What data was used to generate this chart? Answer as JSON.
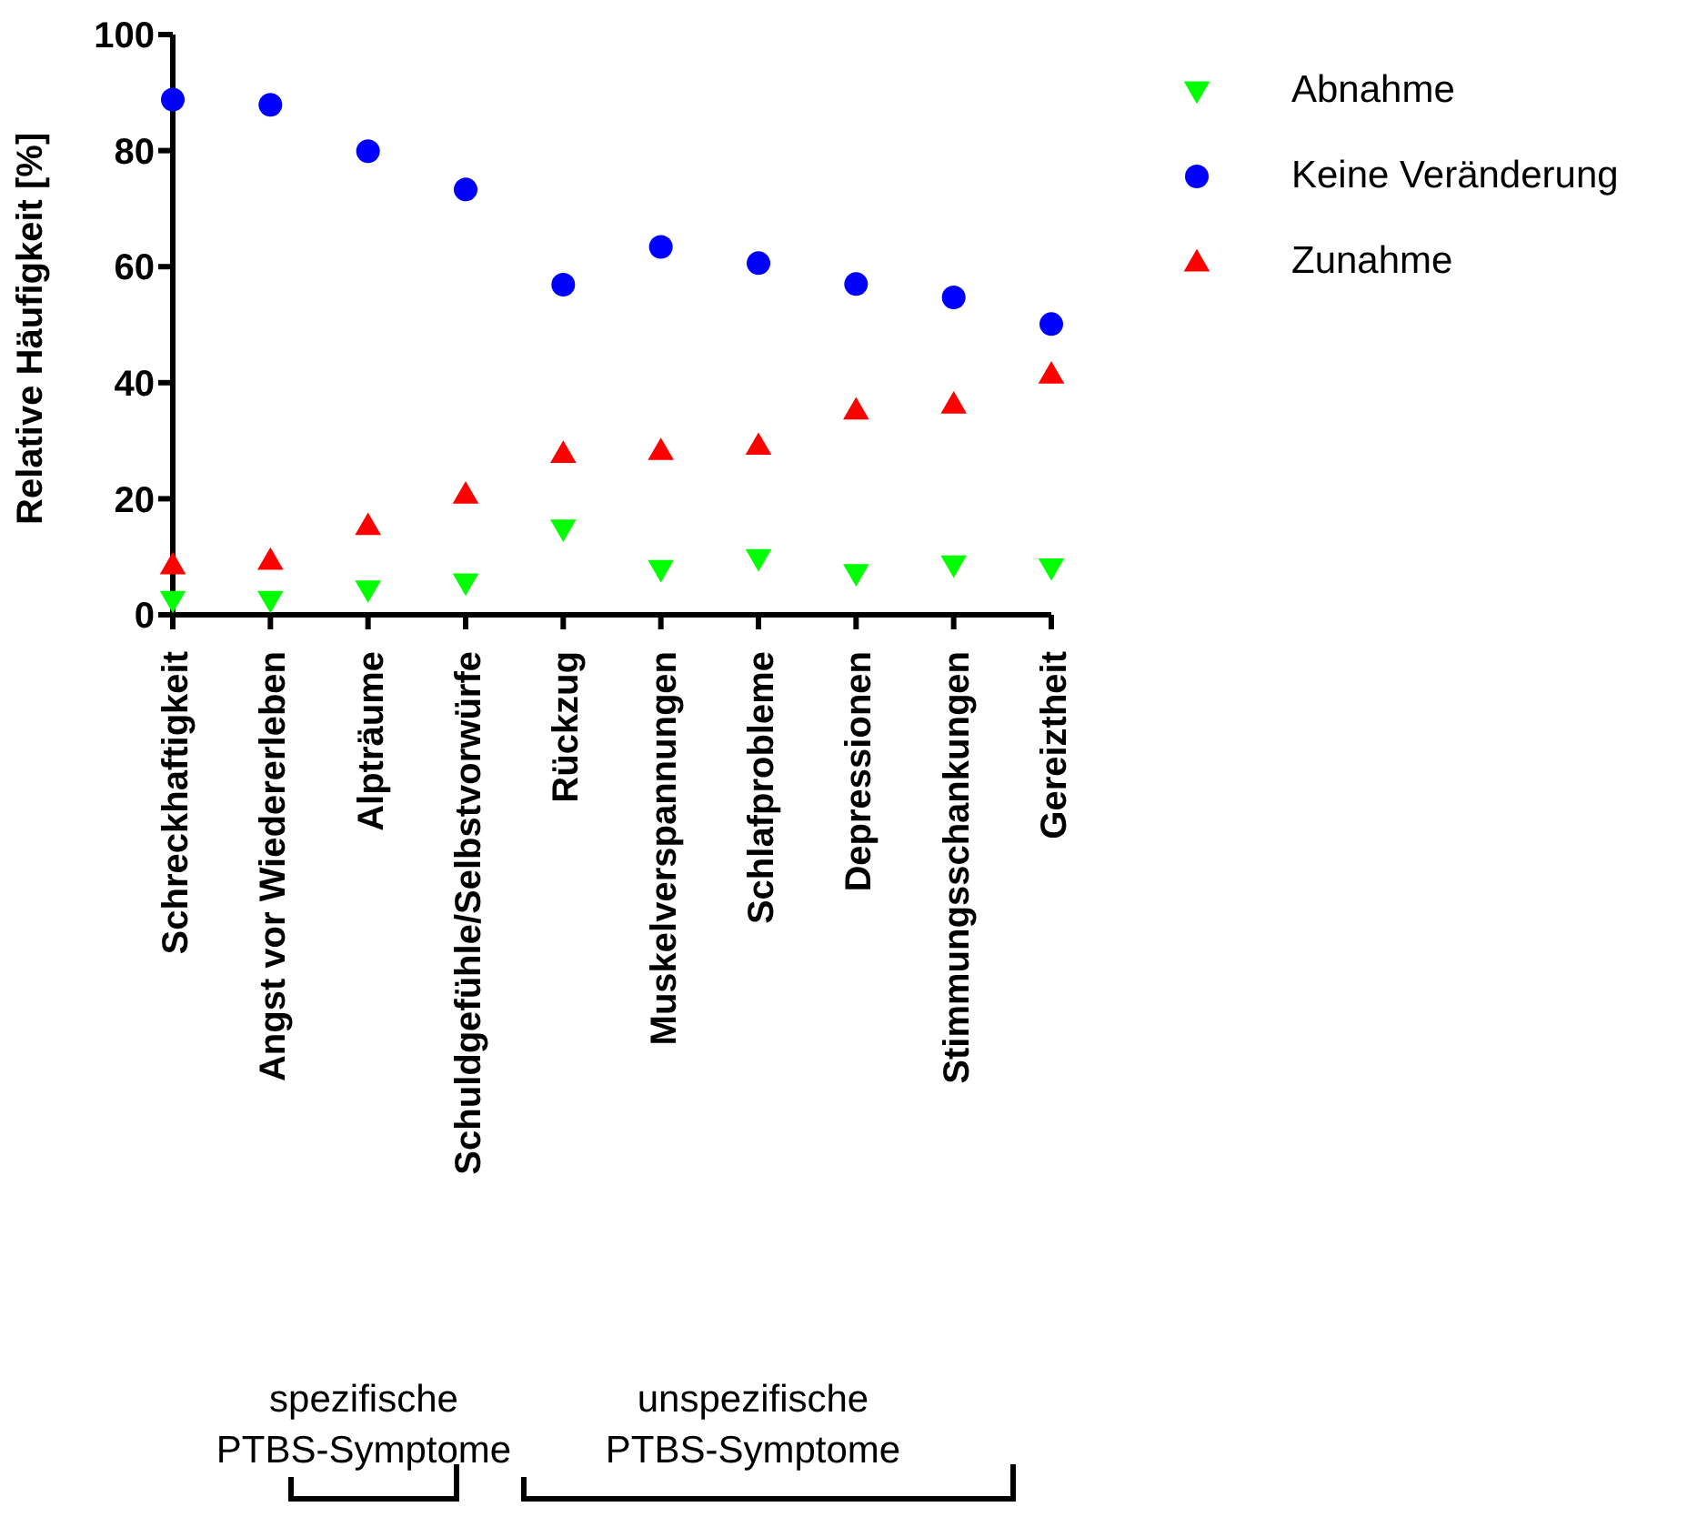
{
  "chart_data": {
    "type": "scatter",
    "ylabel": "Relative Häufigkeit [%]",
    "categories": [
      "Schreckhaftigkeit",
      "Angst vor Wiedererleben",
      "Alpträume",
      "Schuldgefühle/Selbstvorwürfe",
      "Rückzug",
      "Muskelverspannungen",
      "Schlafprobleme",
      "Depressionen",
      "Stimmungsschankungen",
      "Gereiztheit"
    ],
    "series": [
      {
        "name": "Abnahme",
        "color": "#00ff00",
        "marker": "triangle_down",
        "values": [
          2.5,
          2.5,
          4.3,
          5.5,
          14.8,
          7.8,
          9.7,
          7.1,
          8.6,
          8.1
        ]
      },
      {
        "name": "Keine Veränderung",
        "color": "#0000ff",
        "marker": "circle",
        "values": [
          88.8,
          87.9,
          79.9,
          73.3,
          56.9,
          63.4,
          60.6,
          57.0,
          54.7,
          50.1
        ]
      },
      {
        "name": "Zunahme",
        "color": "#ff0000",
        "marker": "triangle",
        "values": [
          8.6,
          9.4,
          15.4,
          20.8,
          27.8,
          28.3,
          29.2,
          35.3,
          36.3,
          41.5
        ]
      }
    ],
    "ylim": [
      0,
      100
    ],
    "yticks": [
      0,
      20,
      40,
      60,
      80,
      100
    ],
    "grid": false,
    "legend": "top right",
    "annotations": [
      "spezifische PTBS-Symptome",
      "unspezifische PTBS-Symptome"
    ]
  }
}
